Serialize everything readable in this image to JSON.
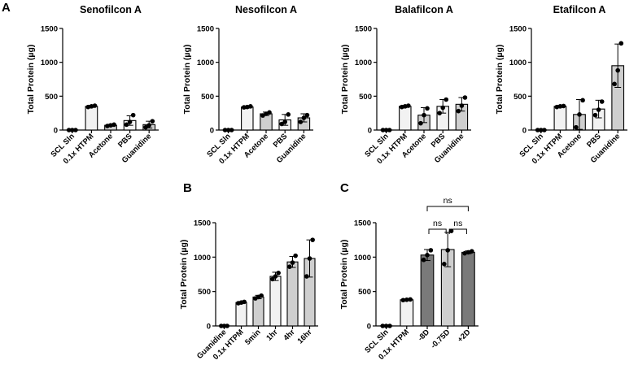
{
  "panel_labels": {
    "A": "A",
    "B": "B",
    "C": "C"
  },
  "colors": {
    "bar_light": "#f2f2f2",
    "bar_mid": "#cfcfcf",
    "bar_dark": "#7a7a7a",
    "axis": "#000000",
    "point": "#000000"
  },
  "chart_data": [
    {
      "id": "senofilcon",
      "type": "bar",
      "title": "Senofilcon A",
      "ylabel": "Total Protein (µg)",
      "ylim": [
        0,
        1500
      ],
      "yticks": [
        "0",
        "500",
        "1000",
        "1500"
      ],
      "categories": [
        "SCL Sln",
        "0.1x HTPM",
        "Acetone",
        "PBS",
        "Guanidine"
      ],
      "values": [
        0,
        350,
        70,
        140,
        80
      ],
      "errors": [
        0,
        15,
        15,
        70,
        50
      ],
      "points": [
        [
          0,
          0,
          0
        ],
        [
          340,
          350,
          360
        ],
        [
          60,
          70,
          80
        ],
        [
          80,
          120,
          220
        ],
        [
          40,
          70,
          130
        ]
      ]
    },
    {
      "id": "nesofilcon",
      "type": "bar",
      "title": "Nesofilcon A",
      "ylabel": "Total Protein (µg)",
      "ylim": [
        0,
        1500
      ],
      "yticks": [
        "0",
        "500",
        "1000",
        "1500"
      ],
      "categories": [
        "SCL Sln",
        "0.1x HTPM",
        "Acetone",
        "PBS",
        "Guanidine"
      ],
      "values": [
        0,
        340,
        240,
        150,
        180
      ],
      "errors": [
        0,
        15,
        25,
        80,
        60
      ],
      "points": [
        [
          0,
          0,
          0
        ],
        [
          335,
          340,
          350
        ],
        [
          215,
          240,
          260
        ],
        [
          90,
          120,
          230
        ],
        [
          120,
          180,
          220
        ]
      ]
    },
    {
      "id": "balafilcon",
      "type": "bar",
      "title": "Balafilcon A",
      "ylabel": "Total Protein (µg)",
      "ylim": [
        0,
        1500
      ],
      "yticks": [
        "0",
        "500",
        "1000",
        "1500"
      ],
      "categories": [
        "SCL Sln",
        "0.1x HTPM",
        "Acetone",
        "PBS",
        "Guanidine"
      ],
      "values": [
        0,
        350,
        220,
        350,
        380
      ],
      "errors": [
        0,
        15,
        110,
        100,
        100
      ],
      "points": [
        [
          0,
          0,
          0
        ],
        [
          340,
          350,
          360
        ],
        [
          100,
          220,
          320
        ],
        [
          250,
          330,
          450
        ],
        [
          280,
          360,
          480
        ]
      ]
    },
    {
      "id": "etafilcon",
      "type": "bar",
      "title": "Etafilcon A",
      "ylabel": "Total Protein (µg)",
      "ylim": [
        0,
        1500
      ],
      "yticks": [
        "0",
        "500",
        "1000",
        "1500"
      ],
      "categories": [
        "SCL Sln",
        "0.1x HTPM",
        "Acetone",
        "PBS",
        "Guanidine"
      ],
      "values": [
        0,
        350,
        230,
        310,
        950
      ],
      "errors": [
        0,
        15,
        220,
        130,
        320
      ],
      "points": [
        [
          0,
          0,
          0
        ],
        [
          340,
          350,
          355
        ],
        [
          40,
          230,
          440
        ],
        [
          220,
          300,
          420
        ],
        [
          680,
          880,
          1280
        ]
      ]
    },
    {
      "id": "panel_b",
      "type": "bar",
      "title": "",
      "ylabel": "Total Protein (µg)",
      "ylim": [
        0,
        1500
      ],
      "yticks": [
        "0",
        "500",
        "1000",
        "1500"
      ],
      "categories": [
        "Guanidine",
        "0.1x HTPM",
        "5min",
        "1hr",
        "4hr",
        "16hr"
      ],
      "values": [
        0,
        340,
        420,
        720,
        930,
        980
      ],
      "errors": [
        0,
        10,
        25,
        60,
        80,
        270
      ],
      "points": [
        [
          0,
          0,
          0
        ],
        [
          330,
          340,
          350
        ],
        [
          400,
          420,
          440
        ],
        [
          680,
          720,
          770
        ],
        [
          860,
          920,
          1020
        ],
        [
          720,
          980,
          1250
        ]
      ]
    },
    {
      "id": "panel_c",
      "type": "bar",
      "title": "",
      "ylabel": "Total Protein (µg)",
      "ylim": [
        0,
        1500
      ],
      "yticks": [
        "0",
        "500",
        "1000",
        "1500"
      ],
      "categories": [
        "SCL Sln",
        "0.1x HTPM",
        "-8D",
        "-0.75D",
        "+2D"
      ],
      "values": [
        0,
        380,
        1030,
        1110,
        1070
      ],
      "errors": [
        0,
        10,
        80,
        250,
        20
      ],
      "points": [
        [
          0,
          0,
          0
        ],
        [
          375,
          380,
          385
        ],
        [
          960,
          1030,
          1100
        ],
        [
          900,
          1100,
          1380
        ],
        [
          1055,
          1070,
          1085
        ]
      ],
      "annotations": [
        {
          "label": "ns",
          "from": 2,
          "to": 3
        },
        {
          "label": "ns",
          "from": 3,
          "to": 4
        },
        {
          "label": "ns",
          "from": 2,
          "to": 4
        }
      ]
    }
  ]
}
